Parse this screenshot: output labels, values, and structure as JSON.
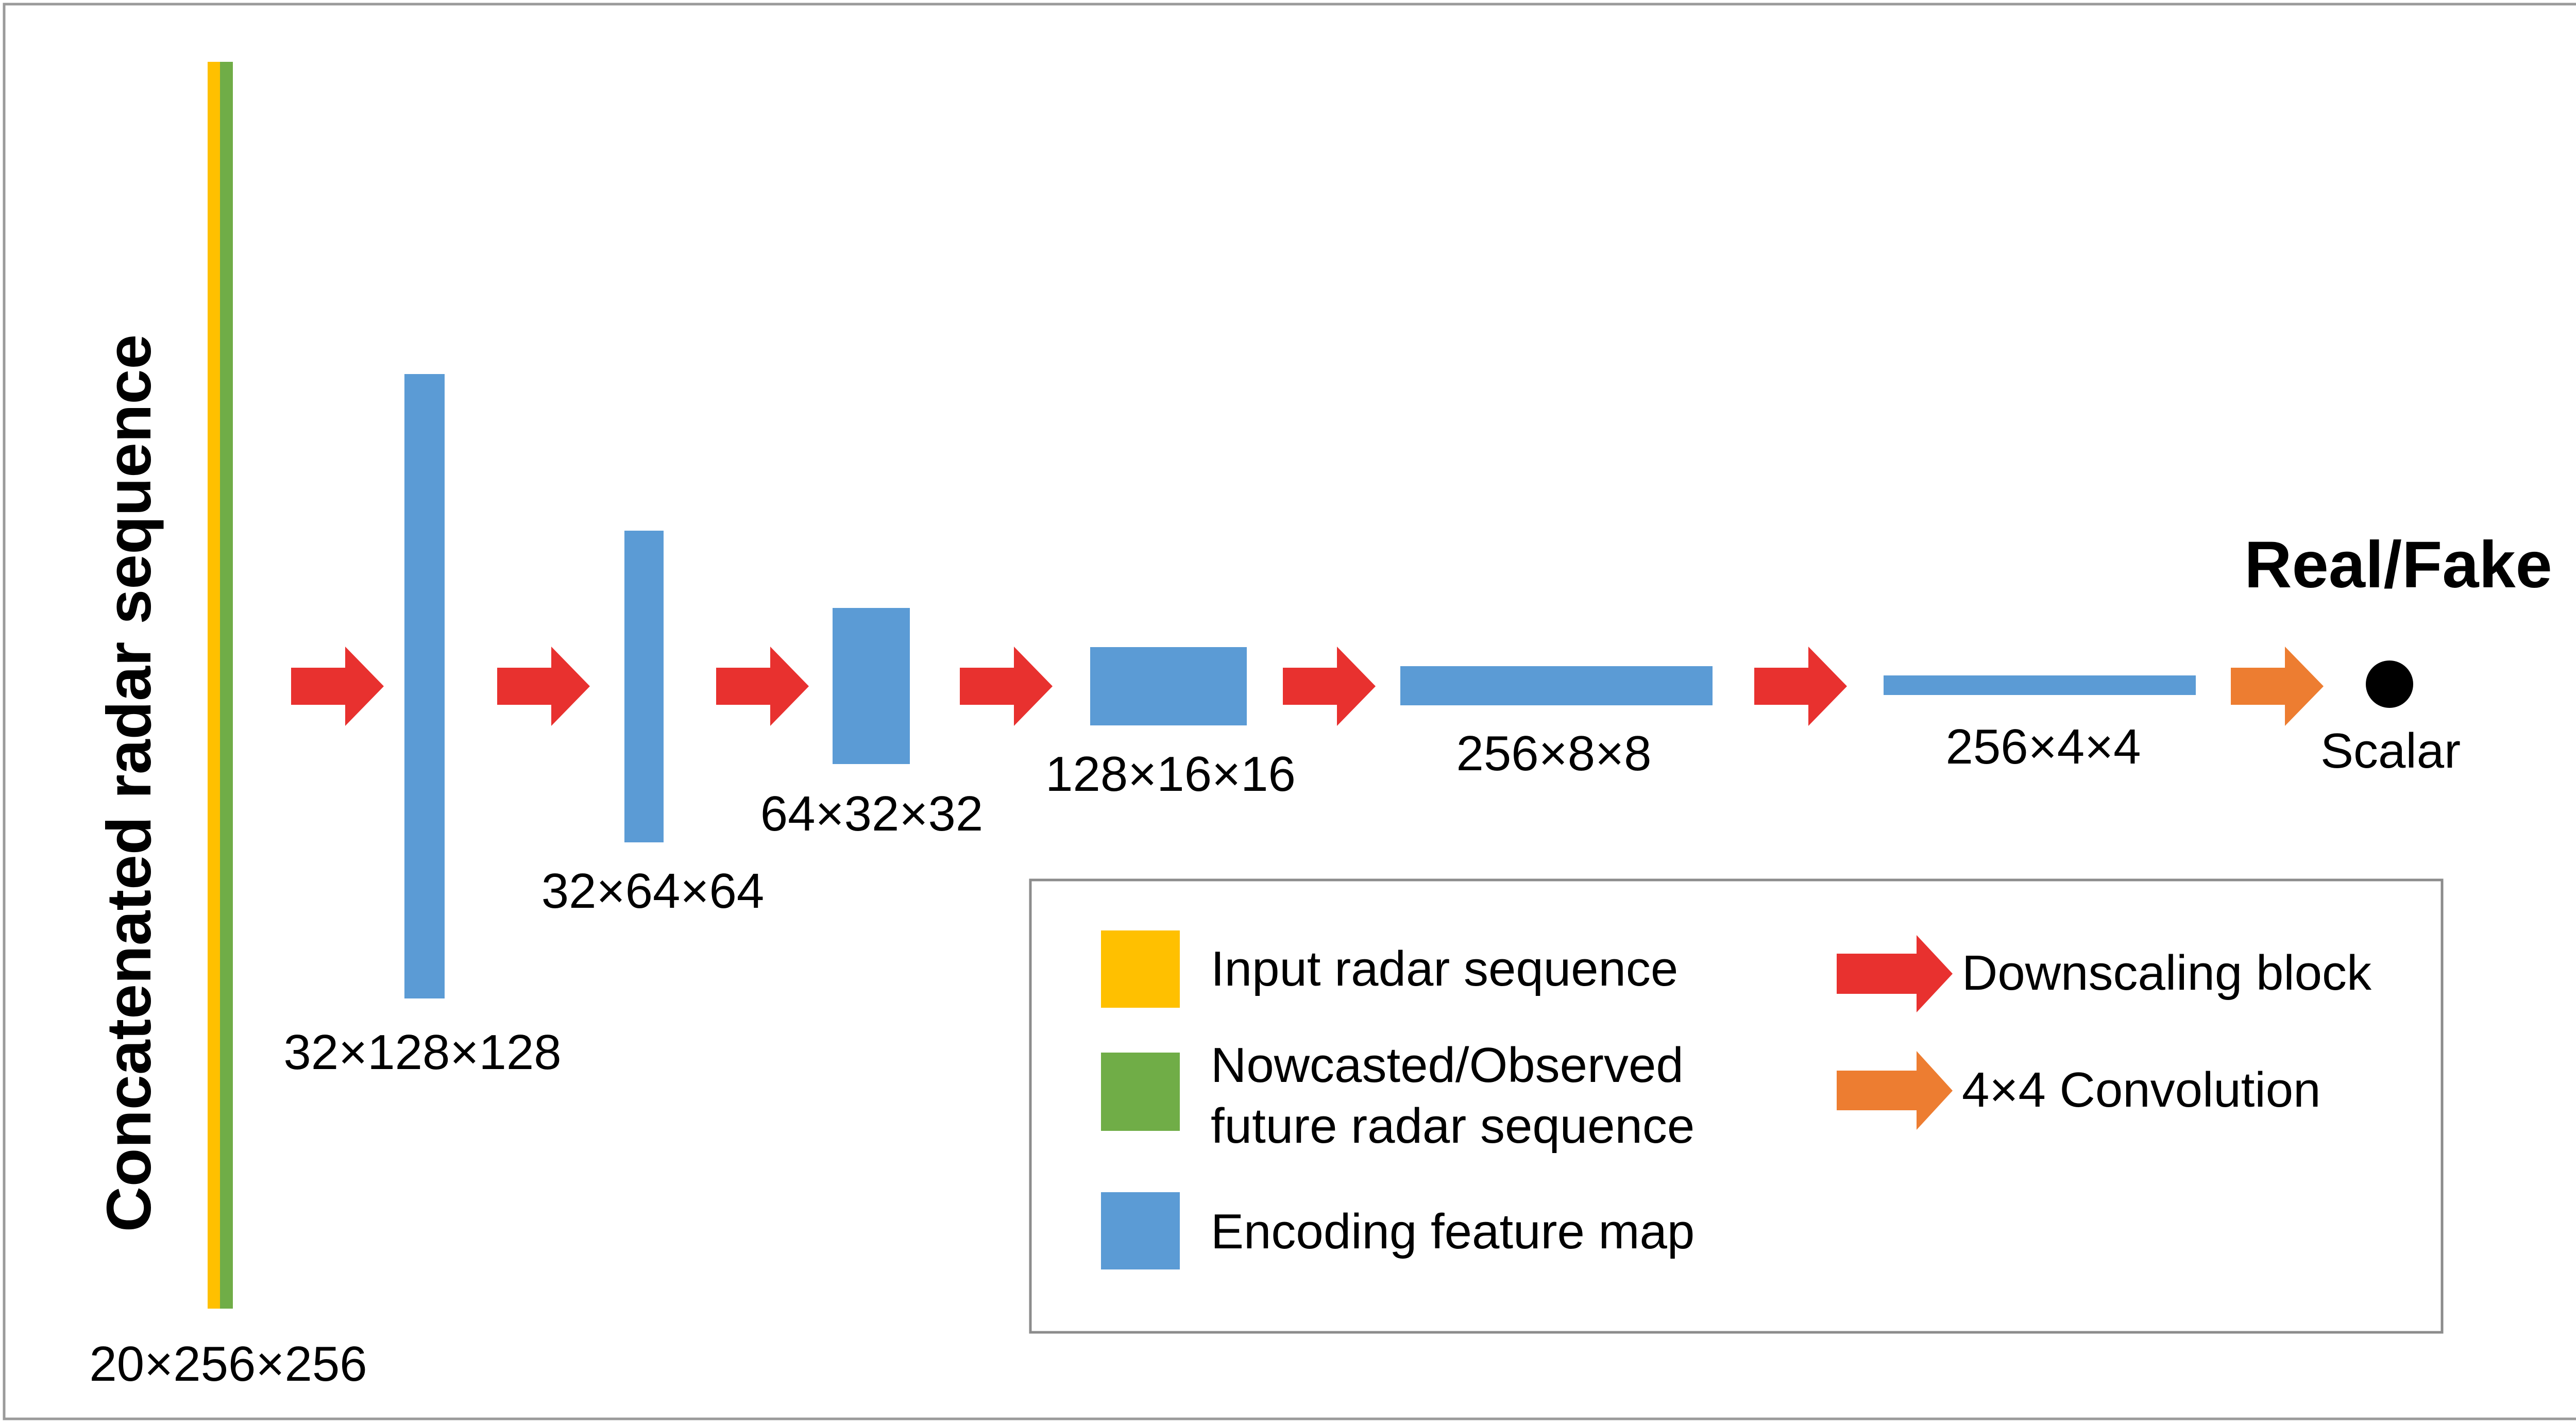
{
  "diagram": {
    "vertical_label": "Concatenated radar sequence",
    "output_title": "Real/Fake",
    "output_label": "Scalar",
    "input_size_label": "20×256×256",
    "feature_maps": [
      {
        "label": "32×128×128"
      },
      {
        "label": "32×64×64"
      },
      {
        "label": "64×32×32"
      },
      {
        "label": "128×16×16"
      },
      {
        "label": "256×8×8"
      },
      {
        "label": "256×4×4"
      }
    ],
    "legend": {
      "input": "Input radar sequence",
      "future_line1": "Nowcasted/Observed",
      "future_line2": "future radar sequence",
      "feature": "Encoding feature map",
      "downscaling": "Downscaling block",
      "convolution": "4×4 Convolution"
    },
    "colors": {
      "input": "#FFC000",
      "future": "#70AD47",
      "feature": "#5B9BD5",
      "downscaling": "#E8312F",
      "convolution": "#ED7D31",
      "output": "#000000"
    }
  }
}
